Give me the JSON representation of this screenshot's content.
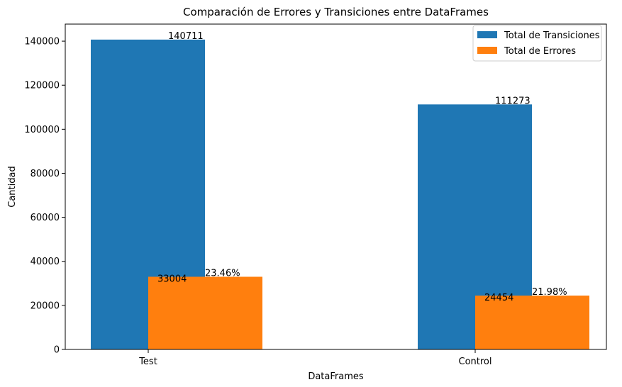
{
  "chart_data": {
    "type": "bar",
    "title": "Comparación de Errores y Transiciones entre DataFrames",
    "xlabel": "DataFrames",
    "ylabel": "Cantidad",
    "categories": [
      "Test",
      "Control"
    ],
    "series": [
      {
        "name": "Total de Transiciones",
        "color": "#1f77b4",
        "values": [
          140711,
          111273
        ]
      },
      {
        "name": "Total de Errores",
        "color": "#ff7f0e",
        "values": [
          33004,
          24454
        ]
      }
    ],
    "value_labels": [
      [
        "140711",
        "111273"
      ],
      [
        "33004",
        "24454"
      ]
    ],
    "percent_labels": [
      "23.46%",
      "21.98%"
    ],
    "ylim": [
      0,
      147750
    ],
    "yticks": [
      0,
      20000,
      40000,
      60000,
      80000,
      100000,
      120000,
      140000
    ],
    "ytick_labels": [
      "0",
      "20000",
      "40000",
      "60000",
      "80000",
      "100000",
      "120000",
      "140000"
    ],
    "grid": false,
    "legend_position": "top-right"
  }
}
